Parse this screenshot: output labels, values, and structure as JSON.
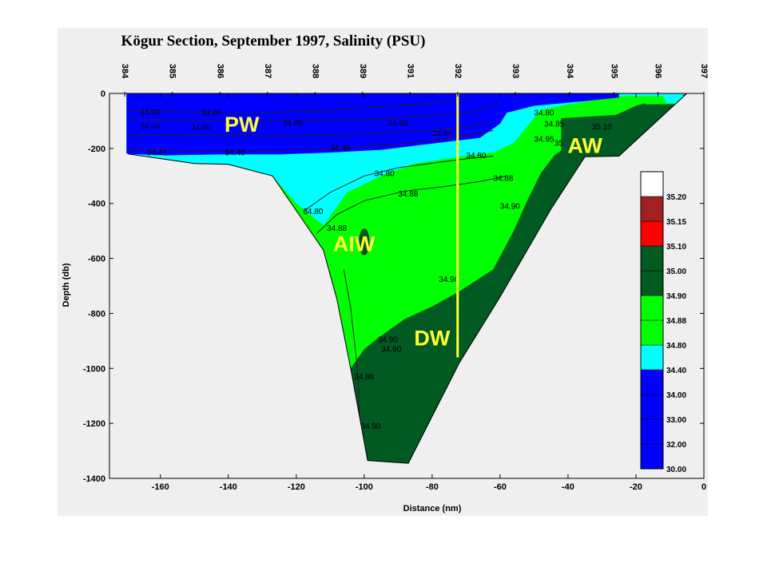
{
  "chart_data": {
    "type": "contour",
    "title": "Kögur Section, September 1997, Salinity (PSU)",
    "xlabel": "Distance (nm)",
    "ylabel": "Depth (db)",
    "xlim": [
      -175,
      0
    ],
    "ylim": [
      -1400,
      0
    ],
    "x_ticks": [
      "-160",
      "-140",
      "-120",
      "-100",
      "-80",
      "-60",
      "-40",
      "-20",
      "0"
    ],
    "y_ticks": [
      "0",
      "-200",
      "-400",
      "-600",
      "-800",
      "-1000",
      "-1200",
      "-1400"
    ],
    "stations": [
      {
        "label": "384",
        "x": -170.5
      },
      {
        "label": "385",
        "x": -156.5
      },
      {
        "label": "386",
        "x": -142.5
      },
      {
        "label": "387",
        "x": -128.5
      },
      {
        "label": "388",
        "x": -114.5
      },
      {
        "label": "389",
        "x": -100.5
      },
      {
        "label": "391",
        "x": -86.5
      },
      {
        "label": "392",
        "x": -72.5
      },
      {
        "label": "393",
        "x": -55.5
      },
      {
        "label": "394",
        "x": -39.5
      },
      {
        "label": "395",
        "x": -26.5
      },
      {
        "label": "396",
        "x": -13.5
      },
      {
        "label": "397",
        "x": 0.0
      }
    ],
    "colorbar": {
      "levels": [
        "30.00",
        "32.00",
        "33.00",
        "34.00",
        "34.40",
        "34.80",
        "34.88",
        "34.90",
        "35.00",
        "35.10",
        "35.15",
        "35.20"
      ],
      "colors": [
        "#0000ff",
        "#0000ff",
        "#0000ff",
        "#0000ff",
        "#00ffff",
        "#00ff00",
        "#00ff00",
        "#005a22",
        "#005a22",
        "#ff0000",
        "#a12020",
        "#ffffff"
      ]
    },
    "bottom_profile": [
      [
        -169.5,
        -220
      ],
      [
        -150,
        -255
      ],
      [
        -140,
        -258
      ],
      [
        -127,
        -300
      ],
      [
        -112,
        -570
      ],
      [
        -108,
        -750
      ],
      [
        -104,
        -1000
      ],
      [
        -99,
        -1335
      ],
      [
        -87,
        -1345
      ],
      [
        -72,
        -980
      ],
      [
        -60,
        -740
      ],
      [
        -45,
        -420
      ],
      [
        -35,
        -230
      ],
      [
        -25,
        -228
      ],
      [
        -5,
        0
      ],
      [
        0,
        0
      ]
    ],
    "water_masses": [
      {
        "label": "PW",
        "x": -136,
        "y": -110
      },
      {
        "label": "AIW",
        "x": -103,
        "y": -545
      },
      {
        "label": "DW",
        "x": -80,
        "y": -888
      },
      {
        "label": "AW",
        "x": -35,
        "y": -188
      }
    ],
    "contour_labels": [
      {
        "text": "33.00",
        "x": -166,
        "y": -78
      },
      {
        "text": "33.00",
        "x": -148,
        "y": -80
      },
      {
        "text": "34.00",
        "x": -166,
        "y": -128
      },
      {
        "text": "34.50",
        "x": -151,
        "y": -132
      },
      {
        "text": "34.00",
        "x": -124,
        "y": -118
      },
      {
        "text": "34.00",
        "x": -93,
        "y": -118
      },
      {
        "text": "34.40",
        "x": -164,
        "y": -225
      },
      {
        "text": "34.40",
        "x": -141,
        "y": -225
      },
      {
        "text": "34.40",
        "x": -110,
        "y": -208
      },
      {
        "text": "34.40",
        "x": -80,
        "y": -155
      },
      {
        "text": "34.80",
        "x": -70,
        "y": -235
      },
      {
        "text": "34.80",
        "x": -97,
        "y": -300
      },
      {
        "text": "34.88",
        "x": -90,
        "y": -375
      },
      {
        "text": "34.88",
        "x": -62,
        "y": -318
      },
      {
        "text": "34.80",
        "x": -118,
        "y": -438
      },
      {
        "text": "34.88",
        "x": -111,
        "y": -500
      },
      {
        "text": "34.90",
        "x": -60,
        "y": -420
      },
      {
        "text": "34.90",
        "x": -78,
        "y": -685
      },
      {
        "text": "34.90",
        "x": -96,
        "y": -905
      },
      {
        "text": "34.90",
        "x": -95,
        "y": -940
      },
      {
        "text": "34.88",
        "x": -103,
        "y": -1040
      },
      {
        "text": "34.90",
        "x": -101,
        "y": -1220
      },
      {
        "text": "34.80",
        "x": -50,
        "y": -80
      },
      {
        "text": "34.85",
        "x": -47,
        "y": -120
      },
      {
        "text": "34.95",
        "x": -50,
        "y": -175
      },
      {
        "text": "35.10",
        "x": -33,
        "y": -130
      },
      {
        "text": "35",
        "x": -44,
        "y": -190
      }
    ],
    "station_line": {
      "x": -72.5,
      "depth_min": 0,
      "depth_max": -960,
      "color": "#ffff33"
    },
    "colors": {
      "plot_background": "#efefef",
      "figure_background": "#ffffff"
    }
  }
}
